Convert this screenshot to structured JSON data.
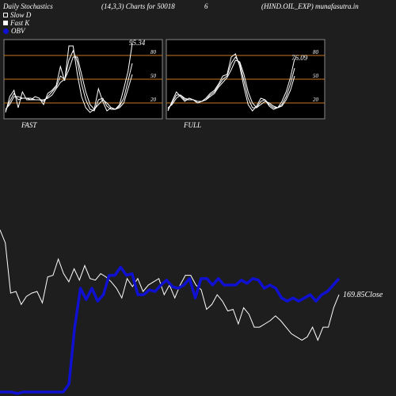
{
  "header": {
    "left": "Daily Stochastics",
    "params": "(14,3,3) Charts for 50018",
    "mid": "6",
    "right": "(HIND.OIL_EXP) munafasutra.in"
  },
  "legend": [
    {
      "label": "Slow  D",
      "swatch": "white-outline"
    },
    {
      "label": "Fast K",
      "swatch": "white-filled"
    },
    {
      "label": "OBV",
      "swatch": "blue-dot"
    }
  ],
  "colors": {
    "background": "#1e1e1e",
    "panel": "#000000",
    "panel_border": "#888888",
    "level_line": "#c8781e",
    "line": "#ffffff",
    "obv": "#1010d0"
  },
  "chart_data": [
    {
      "type": "line",
      "name": "FAST",
      "title": "FAST",
      "ylim": [
        0,
        100
      ],
      "yticks": [
        20,
        50,
        80
      ],
      "levels": [
        20,
        50,
        80
      ],
      "last_value_label": "95.34",
      "series": [
        {
          "values": [
            8,
            28,
            36,
            14,
            34,
            24,
            24,
            28,
            26,
            18,
            32,
            36,
            42,
            66,
            48,
            92,
            92,
            56,
            28,
            14,
            8,
            12,
            38,
            22,
            10,
            14,
            12,
            18,
            38,
            60,
            95
          ]
        },
        {
          "values": [
            10,
            22,
            32,
            24,
            26,
            26,
            24,
            24,
            24,
            22,
            28,
            34,
            40,
            54,
            50,
            74,
            86,
            72,
            44,
            24,
            12,
            10,
            24,
            26,
            16,
            12,
            12,
            16,
            26,
            48,
            70
          ]
        },
        {
          "values": [
            12,
            18,
            28,
            28,
            26,
            26,
            26,
            24,
            24,
            24,
            26,
            30,
            38,
            46,
            50,
            62,
            78,
            78,
            56,
            34,
            18,
            12,
            18,
            24,
            20,
            14,
            12,
            14,
            20,
            38,
            56
          ]
        }
      ]
    },
    {
      "type": "line",
      "name": "FULL",
      "title": "FULL",
      "ylim": [
        0,
        100
      ],
      "yticks": [
        20,
        50,
        80
      ],
      "levels": [
        20,
        50,
        80
      ],
      "last_value_label": "76.09",
      "series": [
        {
          "values": [
            10,
            22,
            34,
            28,
            22,
            26,
            24,
            20,
            22,
            26,
            32,
            36,
            44,
            54,
            56,
            78,
            82,
            66,
            40,
            18,
            10,
            16,
            26,
            24,
            16,
            12,
            14,
            22,
            34,
            52,
            76
          ]
        },
        {
          "values": [
            12,
            20,
            30,
            30,
            24,
            24,
            24,
            22,
            22,
            24,
            30,
            34,
            42,
            50,
            54,
            70,
            78,
            70,
            48,
            26,
            14,
            14,
            22,
            24,
            18,
            14,
            14,
            18,
            28,
            44,
            64
          ]
        },
        {
          "values": [
            14,
            18,
            26,
            30,
            26,
            24,
            24,
            22,
            22,
            24,
            28,
            32,
            40,
            46,
            52,
            62,
            74,
            72,
            56,
            34,
            20,
            14,
            18,
            22,
            20,
            16,
            14,
            16,
            24,
            36,
            54
          ]
        }
      ]
    },
    {
      "type": "line",
      "name": "price-and-obv",
      "close_label": "169.85Close",
      "series": [
        {
          "name": "Close",
          "values": [
            100,
            92,
            61,
            62,
            54,
            59,
            61,
            62,
            55,
            71,
            72,
            82,
            73,
            68,
            76,
            69,
            78,
            70,
            69,
            73,
            71,
            68,
            64,
            58,
            70,
            65,
            70,
            62,
            66,
            68,
            70,
            60,
            66,
            58,
            66,
            72,
            72,
            66,
            63,
            51,
            54,
            60,
            56,
            50,
            51,
            42,
            52,
            48,
            40,
            40,
            42,
            44,
            47,
            44,
            40,
            36,
            34,
            32,
            34,
            40,
            32,
            40,
            40,
            52,
            60
          ]
        },
        {
          "name": "OBV",
          "values": [
            0,
            0,
            0,
            -1,
            0,
            0,
            0,
            0,
            0,
            0,
            0,
            0,
            5,
            40,
            64,
            57,
            64,
            56,
            60,
            72,
            72,
            77,
            72,
            73,
            60,
            60,
            63,
            62,
            66,
            69,
            65,
            64,
            66,
            70,
            58,
            70,
            70,
            66,
            70,
            66,
            66,
            66,
            69,
            67,
            70,
            69,
            64,
            66,
            64,
            58,
            56,
            58,
            56,
            58,
            60,
            56,
            60,
            62,
            66,
            70
          ]
        }
      ]
    }
  ]
}
